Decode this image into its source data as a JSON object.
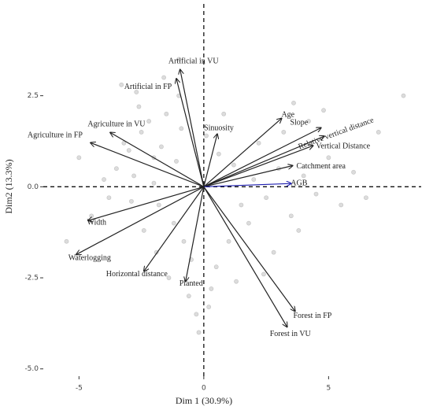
{
  "chart_data": {
    "type": "biplot",
    "x_label": "Dim 1 (30.9%)",
    "y_label": "Dim2 (13.3%)",
    "xlim": [
      -6.43,
      8.71
    ],
    "ylim": [
      -5.2,
      5.02
    ],
    "xticks": [
      -5,
      0,
      5
    ],
    "yticks": [
      {
        "value": -5,
        "label": "-5.0"
      },
      -2.5,
      {
        "value": 0,
        "label": "0.0"
      },
      2.5
    ],
    "point_color": "#9a9a9a",
    "vector_color": "#222222",
    "points": {
      "x": [
        -3,
        -2.5,
        -2,
        -1.5,
        -1,
        -2.8,
        -3.5,
        -1.8,
        -2.2,
        -1.2,
        -0.8,
        -2.6,
        -3.2,
        -1.6,
        -2.0,
        -1.0,
        -0.5,
        -4,
        -4.5,
        -3.8,
        -2.4,
        -1.4,
        -0.6,
        0.5,
        1,
        1.5,
        2,
        2.5,
        3,
        3.5,
        4,
        4.5,
        5,
        5.5,
        6,
        2.2,
        3.2,
        4.2,
        1.8,
        2.8,
        3.8,
        1.2,
        0.8,
        -0.3,
        0.3,
        -1.1,
        -2.7,
        -5.5,
        -5,
        6.5,
        7,
        8,
        -0.2,
        0.2,
        1.3,
        2.4,
        -1.7,
        -2.9,
        -0.9,
        0.6,
        3.6,
        4.8,
        -3.3,
        -1.9,
        0.1
      ],
      "y": [
        1,
        1.5,
        0.8,
        2,
        2.5,
        0.3,
        0.5,
        -0.5,
        1.8,
        -1,
        -1.5,
        2.2,
        1.2,
        3,
        0.1,
        3.5,
        -2,
        0.2,
        -0.8,
        -0.3,
        -1.2,
        -2.5,
        -3,
        -2.2,
        -1.5,
        -0.5,
        0.2,
        -0.3,
        0.5,
        -0.8,
        0.3,
        -0.2,
        0.8,
        -0.5,
        0.4,
        1.2,
        1.5,
        1.8,
        -1,
        -1.8,
        -1.2,
        0.6,
        2,
        -3.5,
        -2.8,
        0.7,
        2.6,
        -1.5,
        0.8,
        -0.3,
        1.5,
        2.5,
        -4,
        -3.3,
        -2.6,
        -2.4,
        1.1,
        -0.4,
        1.6,
        0.9,
        2.3,
        2.1,
        2.8,
        -1.8,
        1.4
      ]
    },
    "vectors": [
      {
        "name": "Artificial in VU",
        "x": -0.95,
        "y": 3.22
      },
      {
        "name": "Artificial in FP",
        "x": -1.1,
        "y": 2.97
      },
      {
        "name": "Agriculture in VU",
        "x": -3.75,
        "y": 1.49
      },
      {
        "name": "Agriculture in FP",
        "x": -4.54,
        "y": 1.21
      },
      {
        "name": "Width",
        "x": -4.64,
        "y": -0.93
      },
      {
        "name": "Waterlogging",
        "x": -5.11,
        "y": -1.86
      },
      {
        "name": "Horizontal distance",
        "x": -2.4,
        "y": -2.32
      },
      {
        "name": "Planted",
        "x": -0.73,
        "y": -2.6
      },
      {
        "name": "Sinuosity",
        "x": 0.54,
        "y": 1.45
      },
      {
        "name": "Age",
        "x": 3.12,
        "y": 1.88
      },
      {
        "name": "Slope",
        "x": 4.7,
        "y": 1.62
      },
      {
        "name": "Relative vertical distance",
        "x": 4.83,
        "y": 1.39
      },
      {
        "name": "Vertical Distance",
        "x": 4.38,
        "y": 1.13
      },
      {
        "name": "Catchment area",
        "x": 3.56,
        "y": 0.58
      },
      {
        "name": "AGB",
        "x": 3.5,
        "y": 0.09,
        "color": "#1f1fb0"
      },
      {
        "name": "Forest in FP",
        "x": 3.66,
        "y": -3.42
      },
      {
        "name": "Forest in VU",
        "x": 3.34,
        "y": -3.85
      }
    ]
  }
}
